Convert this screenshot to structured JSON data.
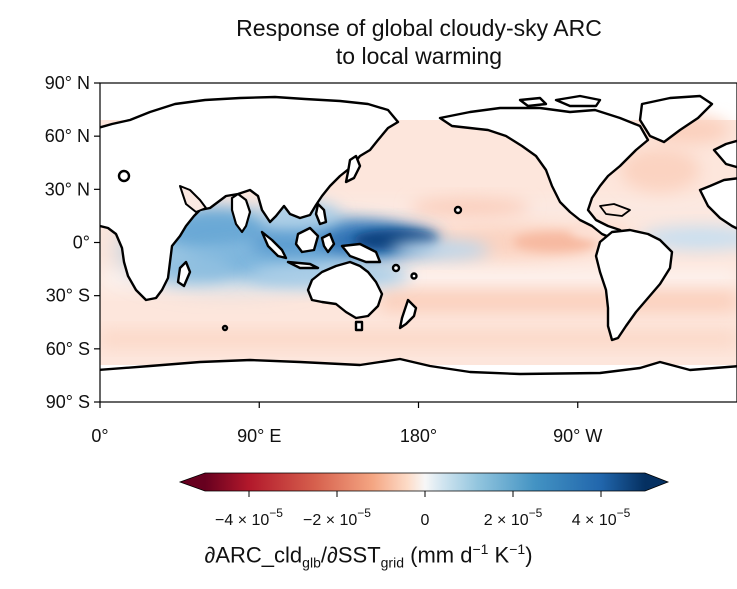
{
  "title_line1": "Response of global cloudy-sky ARC",
  "title_line2": "to local warming",
  "lat_ticks": [
    {
      "lat": 90,
      "label": "90° N"
    },
    {
      "lat": 60,
      "label": "60° N"
    },
    {
      "lat": 30,
      "label": "30° N"
    },
    {
      "lat": 0,
      "label": "0°"
    },
    {
      "lat": -30,
      "label": "30° S"
    },
    {
      "lat": -60,
      "label": "60° S"
    },
    {
      "lat": -90,
      "label": "90° S"
    }
  ],
  "lon_ticks": [
    {
      "lon": 0,
      "label": "0°"
    },
    {
      "lon": 90,
      "label": "90° E"
    },
    {
      "lon": 180,
      "label": "180°"
    },
    {
      "lon": 270,
      "label": "90° W"
    }
  ],
  "colorbar": {
    "min": -5e-05,
    "max": 5e-05,
    "ticks": [
      {
        "value": -4e-05,
        "mant": "−4 × 10",
        "exp": "−5"
      },
      {
        "value": -2e-05,
        "mant": "−2 × 10",
        "exp": "−5"
      },
      {
        "value": 0,
        "mant": "0",
        "exp": ""
      },
      {
        "value": 2e-05,
        "mant": "2 × 10",
        "exp": "−5"
      },
      {
        "value": 4e-05,
        "mant": "4 × 10",
        "exp": "−5"
      }
    ],
    "label_main": "∂ARC_cld",
    "label_sub1": "glb",
    "label_mid": "/∂SST",
    "label_sub2": "grid",
    "label_units_a": " (mm d",
    "label_units_sup1": "−1",
    "label_units_b": " K",
    "label_units_sup2": "−1",
    "label_units_c": ")",
    "colormap": "RdBu",
    "extend": "both"
  },
  "colors": {
    "deep_blue": "#08306b",
    "mid_blue": "#4a90c8",
    "light_blue": "#c7dcef",
    "light_red": "#fbd5c4",
    "deep_red": "#67001f"
  }
}
